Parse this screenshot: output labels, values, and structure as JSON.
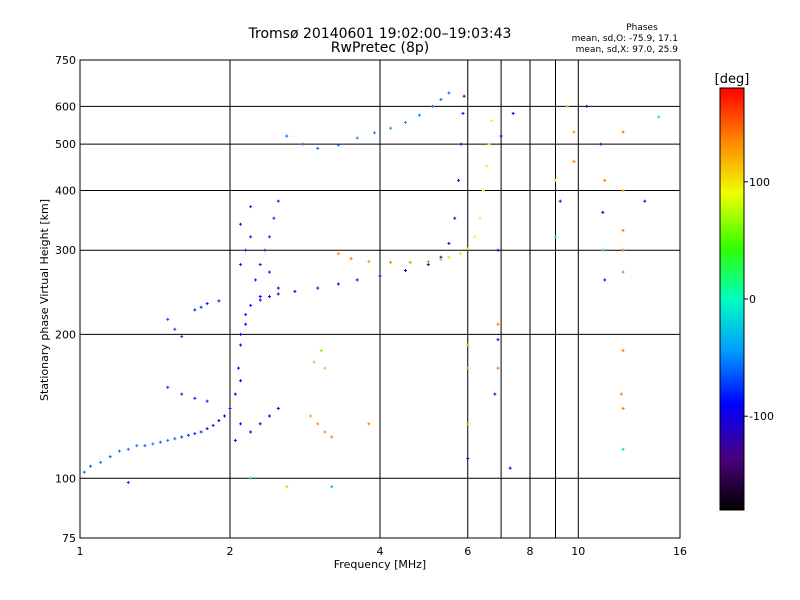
{
  "chart_data": {
    "type": "scatter",
    "title": "Tromsø 20140601 19:02:00–19:03:43",
    "subtitle": "RwPretec (8p)",
    "xlabel": "Frequency [MHz]",
    "ylabel": "Stationary phase Virtual Height [km]",
    "x_scale": "log",
    "y_scale": "log",
    "xlim": [
      1,
      16
    ],
    "ylim": [
      75,
      750
    ],
    "x_ticks": [
      1,
      2,
      4,
      6,
      8,
      10,
      16
    ],
    "x_tick_labels": [
      "1",
      "2",
      "4",
      "6",
      "8",
      "10",
      "16"
    ],
    "x_minor_gridlines": [
      7,
      9
    ],
    "y_ticks": [
      75,
      100,
      200,
      300,
      400,
      500,
      600,
      750
    ],
    "y_tick_labels": [
      "75",
      "100",
      "200",
      "300",
      "400",
      "500",
      "600",
      "750"
    ],
    "grid": true,
    "phase_info": {
      "title": "Phases",
      "line1": "mean, sd,O: -75.9, 17.1",
      "line2": "mean, sd,X: 97.0, 25.9"
    },
    "colorbar": {
      "label": "[deg]",
      "range": [
        -180,
        180
      ],
      "ticks": [
        100,
        0,
        -100
      ],
      "tick_labels": [
        "100",
        "0",
        "-100"
      ],
      "colormap": "rainbow"
    },
    "series": [
      {
        "points": [
          [
            1.02,
            103,
            -60
          ],
          [
            1.05,
            106,
            -60
          ],
          [
            1.1,
            108,
            -55
          ],
          [
            1.15,
            111,
            -60
          ],
          [
            1.2,
            114,
            -55
          ],
          [
            1.25,
            115,
            -60
          ],
          [
            1.3,
            117,
            -55
          ],
          [
            1.35,
            117,
            -60
          ],
          [
            1.4,
            118,
            -55
          ],
          [
            1.45,
            119,
            -60
          ],
          [
            1.5,
            120,
            -55
          ],
          [
            1.55,
            121,
            -60
          ],
          [
            1.6,
            122,
            -70
          ],
          [
            1.65,
            123,
            -75
          ],
          [
            1.7,
            124,
            -80
          ],
          [
            1.75,
            125,
            -80
          ],
          [
            1.8,
            127,
            -85
          ],
          [
            1.85,
            129,
            -85
          ],
          [
            1.9,
            132,
            -90
          ],
          [
            1.95,
            135,
            -95
          ],
          [
            2.0,
            140,
            -95
          ],
          [
            2.05,
            150,
            -90
          ],
          [
            2.08,
            170,
            -85
          ],
          [
            2.1,
            200,
            -85
          ],
          [
            2.15,
            220,
            -80
          ],
          [
            2.2,
            230,
            -85
          ],
          [
            2.3,
            236,
            -95
          ],
          [
            2.4,
            240,
            -100
          ],
          [
            2.5,
            243,
            -100
          ],
          [
            2.7,
            246,
            -105
          ],
          [
            3.0,
            250,
            -105
          ],
          [
            3.3,
            255,
            -105
          ],
          [
            3.6,
            260,
            -100
          ],
          [
            4.0,
            265,
            -100
          ],
          [
            4.5,
            272,
            -100
          ],
          [
            5.0,
            280,
            -100
          ],
          [
            5.3,
            290,
            -100
          ],
          [
            5.5,
            310,
            -100
          ],
          [
            5.65,
            350,
            -100
          ],
          [
            5.75,
            420,
            -100
          ],
          [
            5.82,
            500,
            -100
          ],
          [
            5.87,
            580,
            -100
          ],
          [
            5.9,
            630,
            -100
          ]
        ]
      },
      {
        "points": [
          [
            3.3,
            295,
            140
          ],
          [
            3.5,
            288,
            140
          ],
          [
            3.8,
            284,
            135
          ],
          [
            4.2,
            283,
            135
          ],
          [
            4.6,
            283,
            135
          ],
          [
            5.0,
            284,
            135
          ],
          [
            5.3,
            287,
            120
          ],
          [
            5.5,
            290,
            105
          ],
          [
            5.8,
            295,
            100
          ],
          [
            6.0,
            302,
            95
          ],
          [
            6.2,
            320,
            95
          ],
          [
            6.35,
            350,
            95
          ],
          [
            6.45,
            400,
            95
          ],
          [
            6.55,
            450,
            95
          ],
          [
            6.62,
            500,
            95
          ],
          [
            6.7,
            560,
            95
          ]
        ]
      },
      {
        "points": [
          [
            2.6,
            520,
            -60
          ],
          [
            2.8,
            500,
            -60
          ],
          [
            3.0,
            490,
            -60
          ],
          [
            3.3,
            498,
            -60
          ],
          [
            3.6,
            515,
            -50
          ],
          [
            3.9,
            528,
            -50
          ],
          [
            4.2,
            540,
            -45
          ],
          [
            4.5,
            555,
            -45
          ],
          [
            4.8,
            575,
            -50
          ],
          [
            5.1,
            600,
            -55
          ],
          [
            5.3,
            620,
            -60
          ],
          [
            5.5,
            640,
            -60
          ]
        ]
      },
      {
        "points": [
          [
            1.5,
            155,
            -75
          ],
          [
            1.6,
            150,
            -75
          ],
          [
            1.7,
            147,
            -80
          ],
          [
            1.8,
            145,
            -80
          ],
          [
            1.5,
            215,
            -70
          ],
          [
            1.55,
            205,
            -70
          ],
          [
            1.6,
            198,
            -70
          ],
          [
            1.7,
            225,
            -80
          ],
          [
            1.75,
            228,
            -80
          ],
          [
            1.8,
            232,
            -85
          ],
          [
            1.9,
            235,
            -85
          ]
        ]
      },
      {
        "points": [
          [
            2.1,
            280,
            -80
          ],
          [
            2.15,
            300,
            -80
          ],
          [
            2.2,
            320,
            -80
          ],
          [
            2.25,
            260,
            -80
          ],
          [
            2.3,
            280,
            -80
          ],
          [
            2.35,
            300,
            -75
          ],
          [
            2.4,
            320,
            -75
          ],
          [
            2.45,
            350,
            -75
          ],
          [
            2.5,
            380,
            -80
          ],
          [
            2.2,
            370,
            -80
          ],
          [
            2.1,
            340,
            -85
          ],
          [
            2.3,
            240,
            -90
          ],
          [
            2.4,
            270,
            -85
          ],
          [
            2.5,
            250,
            -90
          ]
        ]
      },
      {
        "points": [
          [
            2.05,
            120,
            -95
          ],
          [
            2.1,
            130,
            -95
          ],
          [
            2.1,
            160,
            -90
          ],
          [
            2.1,
            190,
            -90
          ],
          [
            2.15,
            210,
            -85
          ],
          [
            2.2,
            125,
            -95
          ],
          [
            2.3,
            130,
            -100
          ],
          [
            2.4,
            135,
            -100
          ],
          [
            2.5,
            140,
            -100
          ]
        ]
      },
      {
        "points": [
          [
            2.9,
            135,
            125
          ],
          [
            3.0,
            130,
            130
          ],
          [
            3.1,
            125,
            135
          ],
          [
            3.2,
            122,
            140
          ],
          [
            2.95,
            175,
            60
          ],
          [
            3.05,
            185,
            60
          ],
          [
            3.1,
            170,
            60
          ]
        ]
      },
      {
        "points": [
          [
            6.9,
            300,
            -100
          ],
          [
            7.0,
            520,
            -100
          ],
          [
            7.3,
            105,
            -100
          ],
          [
            7.4,
            580,
            -100
          ],
          [
            9.0,
            420,
            80
          ],
          [
            9.0,
            320,
            -20
          ],
          [
            9.2,
            380,
            -100
          ],
          [
            9.5,
            600,
            120
          ],
          [
            9.8,
            530,
            130
          ],
          [
            9.8,
            460,
            140
          ],
          [
            10.4,
            600,
            -100
          ],
          [
            11.1,
            500,
            -100
          ],
          [
            11.3,
            420,
            140
          ],
          [
            11.2,
            360,
            -100
          ],
          [
            11.2,
            300,
            -20
          ],
          [
            11.3,
            260,
            -100
          ],
          [
            12.3,
            530,
            140
          ],
          [
            12.3,
            400,
            130
          ],
          [
            12.3,
            330,
            140
          ],
          [
            12.3,
            300,
            140
          ],
          [
            12.3,
            270,
            140
          ],
          [
            12.3,
            185,
            140
          ],
          [
            12.2,
            150,
            140
          ],
          [
            12.3,
            140,
            140
          ],
          [
            12.3,
            115,
            -20
          ],
          [
            13.6,
            380,
            -100
          ],
          [
            14.5,
            570,
            -20
          ],
          [
            6.0,
            190,
            120
          ],
          [
            6.0,
            170,
            120
          ],
          [
            6.0,
            130,
            120
          ],
          [
            6.0,
            110,
            -100
          ],
          [
            6.9,
            210,
            140
          ],
          [
            6.9,
            170,
            140
          ],
          [
            6.8,
            150,
            -100
          ],
          [
            6.9,
            195,
            -100
          ],
          [
            3.2,
            96,
            -40
          ],
          [
            2.6,
            96,
            60
          ],
          [
            3.8,
            130,
            140
          ],
          [
            2.2,
            100,
            -20
          ],
          [
            1.25,
            98,
            -80
          ]
        ]
      }
    ]
  }
}
